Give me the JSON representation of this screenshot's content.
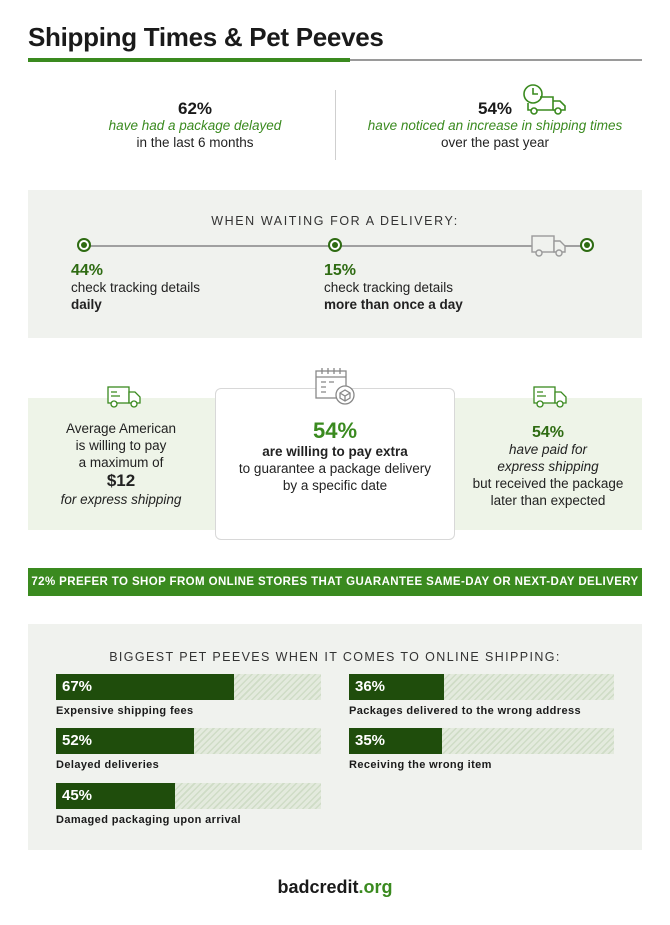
{
  "header": {
    "title": "Shipping Times & Pet Peeves"
  },
  "top_stats": [
    {
      "value": "62%",
      "highlight": "have had a package delayed",
      "rest": "in the last 6 months"
    },
    {
      "value": "54%",
      "highlight": "have noticed an increase in shipping times",
      "rest": "over the past year"
    }
  ],
  "waiting": {
    "heading": "WHEN WAITING FOR A DELIVERY:",
    "items": [
      {
        "value": "44%",
        "line1": "check tracking details",
        "line2": "daily"
      },
      {
        "value": "15%",
        "line1": "check tracking details",
        "line2": "more than once a day"
      }
    ]
  },
  "express": {
    "left": {
      "l1": "Average American",
      "l2": "is willing to pay",
      "l3": "a maximum of",
      "amount": "$12",
      "l4": "for express shipping"
    },
    "center": {
      "value": "54%",
      "bold": "are willing to pay extra",
      "l1": "to guarantee a package delivery",
      "l2": "by a specific date"
    },
    "right": {
      "value": "54%",
      "i1": "have paid for",
      "i2": "express shipping",
      "l1": "but received the package",
      "l2": "later than expected"
    }
  },
  "banner": "72% PREFER TO SHOP FROM ONLINE STORES THAT GUARANTEE SAME-DAY OR NEXT-DAY DELIVERY",
  "peeves": {
    "heading": "BIGGEST PET PEEVES WHEN IT COMES TO ONLINE SHIPPING:",
    "items": [
      {
        "value": "67%",
        "pct": 67,
        "label": "Expensive shipping fees"
      },
      {
        "value": "36%",
        "pct": 36,
        "label": "Packages delivered to the wrong address"
      },
      {
        "value": "52%",
        "pct": 52,
        "label": "Delayed deliveries"
      },
      {
        "value": "35%",
        "pct": 35,
        "label": "Receiving the wrong item"
      },
      {
        "value": "45%",
        "pct": 45,
        "label": "Damaged packaging upon arrival"
      }
    ]
  },
  "footer": {
    "logo_main": "badcredit",
    "logo_tld": ".org"
  },
  "colors": {
    "accent": "#3a8a1f",
    "dark_green": "#1f4d0c",
    "panel": "#f0f2ee"
  },
  "icons": [
    "truck-clock-icon",
    "truck-icon",
    "calendar-box-icon"
  ]
}
